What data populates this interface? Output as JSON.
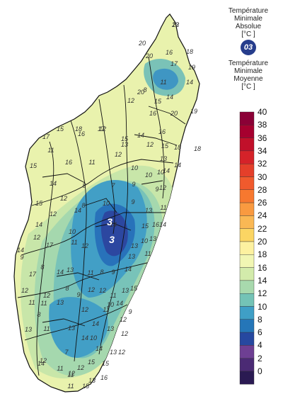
{
  "legend": {
    "absolute_title": [
      "Température",
      "Minimale",
      "Absolue",
      "[°C ]"
    ],
    "absolute_value": "03",
    "mean_title": [
      "Température",
      "Minimale",
      "Moyenne",
      "[°C ]"
    ],
    "scale": {
      "ticks": [
        "40",
        "38",
        "36",
        "34",
        "32",
        "30",
        "28",
        "26",
        "24",
        "22",
        "20",
        "18",
        "16",
        "14",
        "12",
        "10",
        "8",
        "6",
        "4",
        "2",
        "0"
      ],
      "colors": [
        "#8b0036",
        "#a6002f",
        "#c1102a",
        "#d52229",
        "#e43f2a",
        "#f05a2d",
        "#f7782f",
        "#f99a40",
        "#fab854",
        "#fbd563",
        "#fdf1a0",
        "#f1f6b3",
        "#d3ebab",
        "#a8d9ad",
        "#74c3b6",
        "#3f9fc6",
        "#2576b8",
        "#2648a0",
        "#6e3f93",
        "#4b2a74",
        "#2a1a52"
      ]
    },
    "colors": {
      "absolute_badge": "#263d8c",
      "region_border": "#111111",
      "sea": "#ffffff"
    }
  },
  "map": {
    "extreme_labels": [
      "3",
      "3"
    ],
    "zone_labels": [
      "22",
      "20",
      "16",
      "18",
      "20",
      "17",
      "19",
      "11",
      "14",
      "20",
      "15",
      "16",
      "20",
      "19",
      "18",
      "17",
      "15",
      "18",
      "12",
      "16",
      "17",
      "15",
      "14",
      "13",
      "12",
      "15",
      "16",
      "18",
      "12",
      "14",
      "13",
      "10",
      "11",
      "7",
      "8",
      "9",
      "15",
      "14",
      "16",
      "8",
      "9",
      "15",
      "14",
      "10",
      "11",
      "12",
      "17",
      "14",
      "12",
      "11",
      "14",
      "16",
      "15",
      "10",
      "13",
      "11",
      "14",
      "9",
      "17",
      "14",
      "13",
      "11",
      "12",
      "8",
      "9",
      "14",
      "15",
      "13",
      "12",
      "12",
      "11",
      "9",
      "12",
      "13",
      "14",
      "9",
      "10",
      "12",
      "8",
      "13",
      "11",
      "7",
      "14",
      "13",
      "12",
      "10",
      "13",
      "11",
      "11",
      "12",
      "12",
      "15",
      "15",
      "16",
      "11",
      "12",
      "14",
      "15",
      "13",
      "12",
      "14",
      "14",
      "13",
      "11",
      "13",
      "11",
      "14",
      "8",
      "10",
      "13",
      "13",
      "12",
      "12",
      "12",
      "11",
      "10",
      "8",
      "12",
      "14",
      "9",
      "10",
      "12",
      "8",
      "14",
      "11",
      "13"
    ]
  }
}
